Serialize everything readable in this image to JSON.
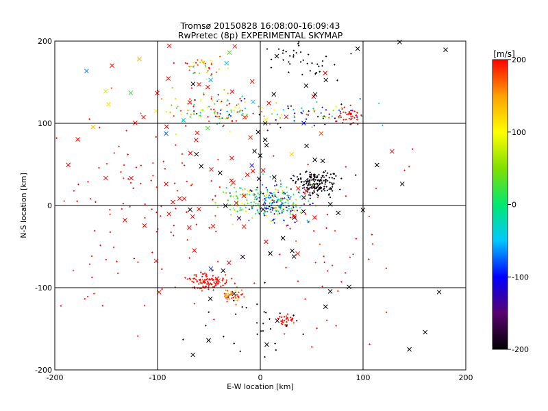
{
  "chart_data": {
    "type": "scatter",
    "title": "Tromsø 20150828 16:08:00-16:09:43",
    "subtitle": "RwPretec (8p) EXPERIMENTAL SKYMAP",
    "xlabel": "E-W location [km]",
    "ylabel": "N-S location [km]",
    "xlim": [
      -200,
      200
    ],
    "ylim": [
      -200,
      200
    ],
    "xticks": [
      -200,
      -100,
      0,
      100,
      200
    ],
    "yticks": [
      -200,
      -100,
      0,
      100,
      200
    ],
    "grid": true,
    "colorbar": {
      "label": "[m/s]",
      "range": [
        -200,
        200
      ],
      "ticks": [
        200,
        100,
        0,
        -100,
        -200
      ],
      "colors": [
        "#000000",
        "#5a0070",
        "#0000ff",
        "#00c8ff",
        "#00e870",
        "#80e000",
        "#ffff00",
        "#ffa000",
        "#ff0000"
      ]
    },
    "markers": {
      "dot": "small point (single detection)",
      "cross": "x marker (multiple/strong detection)"
    },
    "clusters": [
      {
        "name": "NE cluster",
        "cx": 55,
        "cy": 28,
        "sx": 10,
        "sy": 7,
        "n": 160,
        "v": -200,
        "vs": 10,
        "marker": "dot"
      },
      {
        "name": "central cluster",
        "cx": 15,
        "cy": 5,
        "sx": 16,
        "sy": 11,
        "n": 220,
        "v": -40,
        "vs": 70,
        "marker": "dot"
      },
      {
        "name": "west-central",
        "cx": -20,
        "cy": 5,
        "sx": 12,
        "sy": 12,
        "n": 60,
        "v": 40,
        "vs": 30,
        "marker": "dot"
      },
      {
        "name": "upper band",
        "cx": -40,
        "cy": 115,
        "sx": 22,
        "sy": 10,
        "n": 120,
        "v": 60,
        "vs": 120,
        "marker": "dot"
      },
      {
        "name": "upper-right band",
        "cx": 50,
        "cy": 112,
        "sx": 25,
        "sy": 8,
        "n": 60,
        "v": -80,
        "vs": 130,
        "marker": "dot"
      },
      {
        "name": "NE edge",
        "cx": 87,
        "cy": 108,
        "sx": 5,
        "sy": 6,
        "n": 40,
        "v": 200,
        "vs": 10,
        "marker": "dot"
      },
      {
        "name": "top band",
        "cx": -55,
        "cy": 168,
        "sx": 12,
        "sy": 7,
        "n": 40,
        "v": 120,
        "vs": 80,
        "marker": "dot"
      },
      {
        "name": "SW cluster",
        "cx": -50,
        "cy": -92,
        "sx": 9,
        "sy": 5,
        "n": 110,
        "v": 200,
        "vs": 10,
        "marker": "dot"
      },
      {
        "name": "SW cluster 2",
        "cx": -27,
        "cy": -110,
        "sx": 5,
        "sy": 5,
        "n": 45,
        "v": 170,
        "vs": 30,
        "marker": "dot"
      },
      {
        "name": "S cluster",
        "cx": 25,
        "cy": -138,
        "sx": 4,
        "sy": 4,
        "n": 30,
        "v": 200,
        "vs": 5,
        "marker": "dot"
      },
      {
        "name": "N top",
        "cx": 40,
        "cy": 175,
        "sx": 18,
        "sy": 12,
        "n": 40,
        "v": -200,
        "vs": 5,
        "marker": "dot"
      },
      {
        "name": "scatter west",
        "cx": -110,
        "cy": 0,
        "sx": 45,
        "sy": 60,
        "n": 110,
        "v": 200,
        "vs": 10,
        "marker": "dot"
      },
      {
        "name": "scatter east",
        "cx": 60,
        "cy": -50,
        "sx": 35,
        "sy": 60,
        "n": 50,
        "v": 200,
        "vs": 10,
        "marker": "dot"
      },
      {
        "name": "scatter south",
        "cx": 0,
        "cy": -140,
        "sx": 25,
        "sy": 20,
        "n": 30,
        "v": -200,
        "vs": 5,
        "marker": "dot"
      },
      {
        "name": "crosses red",
        "cx": -60,
        "cy": 60,
        "sx": 60,
        "sy": 90,
        "n": 60,
        "v": 200,
        "vs": 5,
        "marker": "cross"
      },
      {
        "name": "crosses black",
        "cx": 30,
        "cy": 40,
        "sx": 60,
        "sy": 110,
        "n": 55,
        "v": -200,
        "vs": 5,
        "marker": "cross"
      },
      {
        "name": "crosses mixed",
        "cx": -10,
        "cy": 80,
        "sx": 60,
        "sy": 80,
        "n": 25,
        "v": 50,
        "vs": 130,
        "marker": "cross"
      }
    ]
  }
}
